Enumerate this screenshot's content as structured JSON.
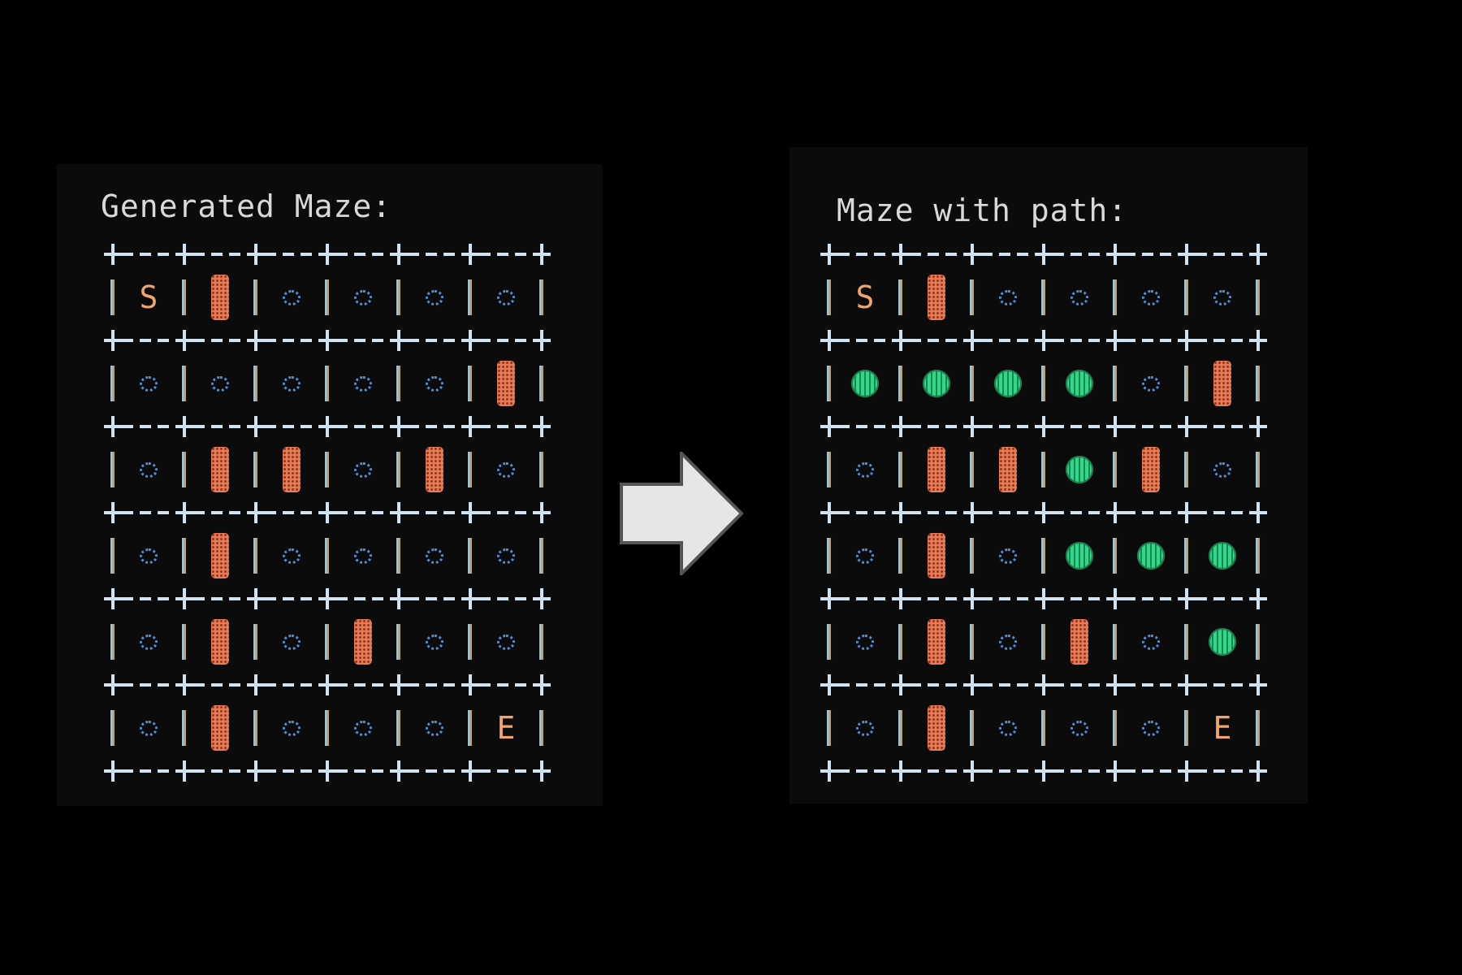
{
  "left_panel": {
    "title": "Generated Maze:",
    "grid": [
      [
        "S",
        "wall",
        "open",
        "open",
        "open",
        "open"
      ],
      [
        "open",
        "open",
        "open",
        "open",
        "open",
        "wall"
      ],
      [
        "open",
        "wall",
        "wall",
        "open",
        "wall",
        "open"
      ],
      [
        "open",
        "wall",
        "open",
        "open",
        "open",
        "open"
      ],
      [
        "open",
        "wall",
        "open",
        "wall",
        "open",
        "open"
      ],
      [
        "open",
        "wall",
        "open",
        "open",
        "open",
        "E"
      ]
    ]
  },
  "right_panel": {
    "title": "Maze with path:",
    "grid": [
      [
        "S",
        "wall",
        "open",
        "open",
        "open",
        "open"
      ],
      [
        "path",
        "path",
        "path",
        "path",
        "open",
        "wall"
      ],
      [
        "open",
        "wall",
        "wall",
        "path",
        "wall",
        "open"
      ],
      [
        "open",
        "wall",
        "open",
        "path",
        "path",
        "path"
      ],
      [
        "open",
        "wall",
        "open",
        "wall",
        "open",
        "path"
      ],
      [
        "open",
        "wall",
        "open",
        "open",
        "open",
        "E"
      ]
    ]
  },
  "arrow": {
    "icon": "right-arrow-icon",
    "fill": "#e6e6e6",
    "stroke": "#555555"
  },
  "colors": {
    "background": "#000000",
    "panel": "#0b0b0b",
    "grid_lines": "#cfe3f3",
    "open_cell": "#4f8fdc",
    "wall_cell": "#e87a56",
    "path_cell": "#35d68a",
    "start_end_letter": "#f0a66a",
    "title_text": "#d9d9d9"
  }
}
